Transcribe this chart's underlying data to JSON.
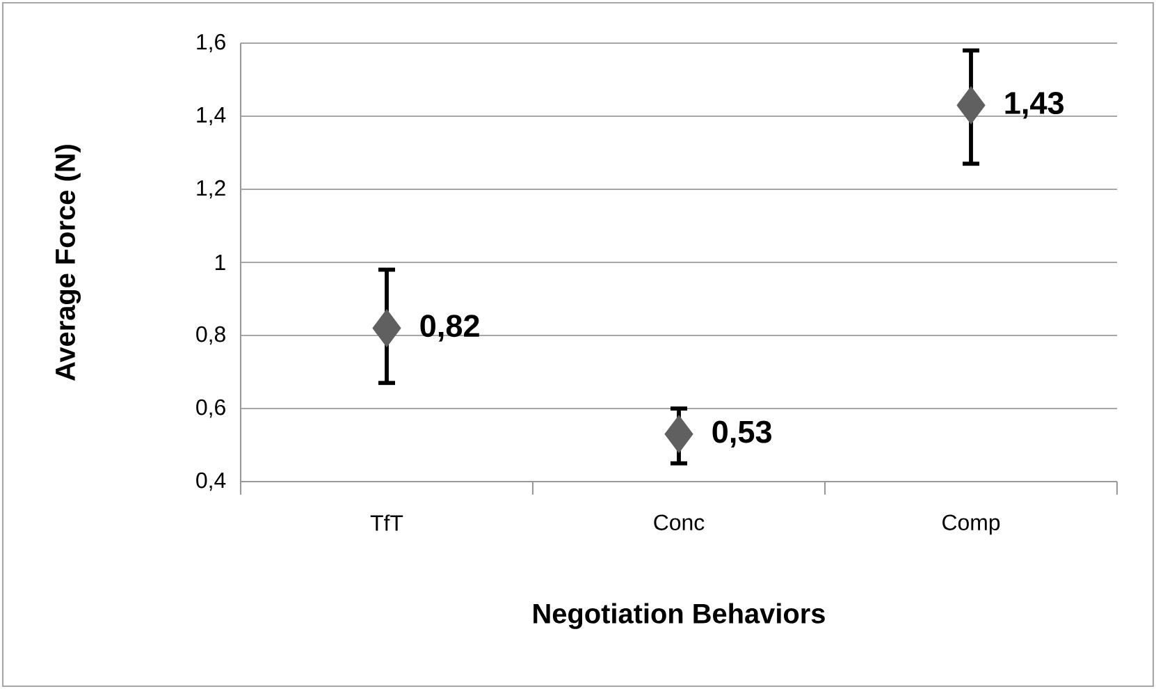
{
  "chart_data": {
    "type": "scatter",
    "xlabel": "Negotiation Behaviors",
    "ylabel": "Average Force (N)",
    "categories": [
      "TfT",
      "Conc",
      "Comp"
    ],
    "values": [
      0.82,
      0.53,
      1.43
    ],
    "errors": [
      [
        0.67,
        0.98
      ],
      [
        0.45,
        0.6
      ],
      [
        1.27,
        1.58
      ]
    ],
    "value_labels": [
      "0,82",
      "0,53",
      "1,43"
    ],
    "color": "#606060",
    "marker": "diamond",
    "grid": "y",
    "ylim": [
      0.4,
      1.6
    ],
    "yticks": [
      {
        "value": 0.4,
        "label": "0,4"
      },
      {
        "value": 0.6,
        "label": "0,6"
      },
      {
        "value": 0.8,
        "label": "0,8"
      },
      1,
      {
        "value": 1.2,
        "label": "1,2"
      },
      {
        "value": 1.4,
        "label": "1,4"
      },
      {
        "value": 1.6,
        "label": "1,6"
      }
    ]
  }
}
